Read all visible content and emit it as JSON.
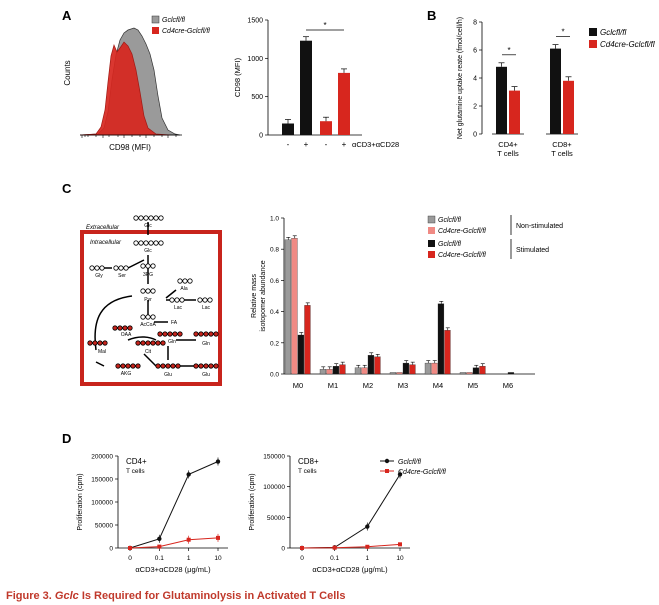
{
  "panels": {
    "A": "A",
    "B": "B",
    "C": "C",
    "D": "D"
  },
  "legend": {
    "control": "Gclcfl/fl",
    "ko": "Cd4cre-Gclcfl/fl",
    "non_stimulated": "Non-stimulated",
    "stimulated": "Stimulated"
  },
  "colors": {
    "control_stim": "#111111",
    "ko_stim": "#d7261e",
    "control_nonstim": "#9a9a9a",
    "ko_nonstim": "#f08a84",
    "pathway_box": "#c8241c"
  },
  "panelA_hist": {
    "xlabel": "CD98 (MFI)",
    "ylabel": "Counts"
  },
  "panelA_bar": {
    "chart_data": {
      "type": "bar",
      "ylabel": "CD98 (MFI)",
      "ylim": [
        0,
        1500
      ],
      "yticks": [
        "0",
        "500",
        "1000",
        "1500"
      ],
      "categories": [
        "-",
        "+",
        "-",
        "+"
      ],
      "groups": [
        "Gclcfl/fl",
        "Gclcfl/fl",
        "Cd4cre-Gclcfl/fl",
        "Cd4cre-Gclcfl/fl"
      ],
      "values": [
        150,
        1230,
        180,
        810
      ],
      "xlabel": "αCD3+αCD28",
      "significance": "*"
    }
  },
  "panelB": {
    "chart_data": {
      "type": "bar",
      "ylabel": "Net glutamine uptake reate (fmol/cell/h)",
      "ylim": [
        0,
        8
      ],
      "yticks": [
        "0",
        "2",
        "4",
        "6",
        "8"
      ],
      "categories": [
        "CD4+ T cells",
        "CD8+ T cells"
      ],
      "series": [
        {
          "name": "Gclcfl/fl",
          "values": [
            4.8,
            6.1
          ]
        },
        {
          "name": "Cd4cre-Gclcfl/fl",
          "values": [
            3.1,
            3.8
          ]
        }
      ],
      "significance": [
        "*",
        "*"
      ]
    },
    "cat_labels": [
      {
        "line1": "CD4+",
        "line2": "T cells"
      },
      {
        "line1": "CD8+",
        "line2": "T cells"
      }
    ]
  },
  "pathway": {
    "extracellular": "Extracellular",
    "intracellular": "Intracellular",
    "glc_out": "Glc",
    "glc_in": "Glc",
    "gly": "Gly",
    "ser": "Ser",
    "3pg": "3PG",
    "pyr": "Pyr",
    "ala": "Ala",
    "lac_in": "Lac",
    "lac_out": "Lac",
    "accoa": "AcCoA",
    "fa": "FA",
    "oaa": "OAA",
    "cit": "Cit",
    "gln_in": "Gln",
    "gln_out": "Gln",
    "mal": "Mal",
    "akg": "AKG",
    "glu_in": "Glu",
    "glu_out": "Glu"
  },
  "panelC": {
    "chart_data": {
      "type": "bar",
      "ylabel": "Relative mass isotopomer abundance",
      "ylim": [
        0,
        1.0
      ],
      "yticks": [
        "0.0",
        "0.2",
        "0.4",
        "0.6",
        "0.8",
        "1.0"
      ],
      "categories": [
        "M0",
        "M1",
        "M2",
        "M3",
        "M4",
        "M5",
        "M6"
      ],
      "series": [
        {
          "name": "Gclcfl/fl Non-stimulated",
          "values": [
            0.86,
            0.03,
            0.04,
            0.01,
            0.07,
            0.01,
            0.0
          ]
        },
        {
          "name": "Cd4cre-Gclcfl/fl Non-stimulated",
          "values": [
            0.87,
            0.03,
            0.04,
            0.01,
            0.07,
            0.01,
            0.0
          ]
        },
        {
          "name": "Gclcfl/fl Stimulated",
          "values": [
            0.25,
            0.05,
            0.12,
            0.07,
            0.45,
            0.04,
            0.01
          ]
        },
        {
          "name": "Cd4cre-Gclcfl/fl Stimulated",
          "values": [
            0.44,
            0.06,
            0.11,
            0.06,
            0.28,
            0.05,
            0.0
          ]
        }
      ]
    }
  },
  "panelD1": {
    "chart_data": {
      "type": "line",
      "ylabel": "Proliferation (cpm)",
      "xlabel": "αCD3+αCD28 (μg/mL)",
      "ylim": [
        0,
        200000
      ],
      "yticks": [
        "0",
        "50000",
        "100000",
        "150000",
        "200000"
      ],
      "xticks": [
        "0",
        "0.1",
        "1",
        "10"
      ],
      "series": [
        {
          "name": "Gclcfl/fl",
          "values": [
            0,
            20000,
            160000,
            188000
          ]
        },
        {
          "name": "Cd4cre-Gclcfl/fl",
          "values": [
            0,
            3000,
            18000,
            22000
          ]
        }
      ]
    },
    "label1": "CD4+",
    "label2": "T cells"
  },
  "panelD2": {
    "chart_data": {
      "type": "line",
      "ylabel": "Proliferation (cpm)",
      "xlabel": "αCD3+αCD28 (μg/mL)",
      "ylim": [
        0,
        150000
      ],
      "yticks": [
        "0",
        "50000",
        "100000",
        "150000"
      ],
      "xticks": [
        "0",
        "0.1",
        "1",
        "10"
      ],
      "series": [
        {
          "name": "Gclcfl/fl",
          "values": [
            0,
            1000,
            35000,
            120000
          ]
        },
        {
          "name": "Cd4cre-Gclcfl/fl",
          "values": [
            0,
            500,
            2000,
            6000
          ]
        }
      ]
    },
    "label1": "CD8+",
    "label2": "T cells"
  },
  "caption": {
    "prefix": "Figure 3. ",
    "gene": "Gclc",
    "rest": " Is Required for Glutaminolysis in Activated T Cells"
  }
}
